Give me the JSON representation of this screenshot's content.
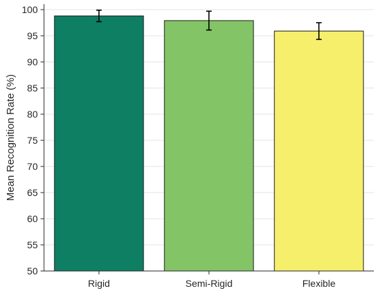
{
  "chart_data": {
    "type": "bar",
    "title": "",
    "xlabel": "",
    "ylabel": "Mean Recognition Rate (%)",
    "categories": [
      "Rigid",
      "Semi-Rigid",
      "Flexible"
    ],
    "values": [
      98.8,
      97.9,
      95.9
    ],
    "error": [
      1.1,
      1.8,
      1.6
    ],
    "colors": [
      "#0e7f63",
      "#82c466",
      "#f6ef6c"
    ],
    "ylim": [
      50,
      100
    ],
    "yticks": [
      50,
      55,
      60,
      65,
      70,
      75,
      80,
      85,
      90,
      95,
      100
    ],
    "grid": true,
    "legend": "none"
  }
}
